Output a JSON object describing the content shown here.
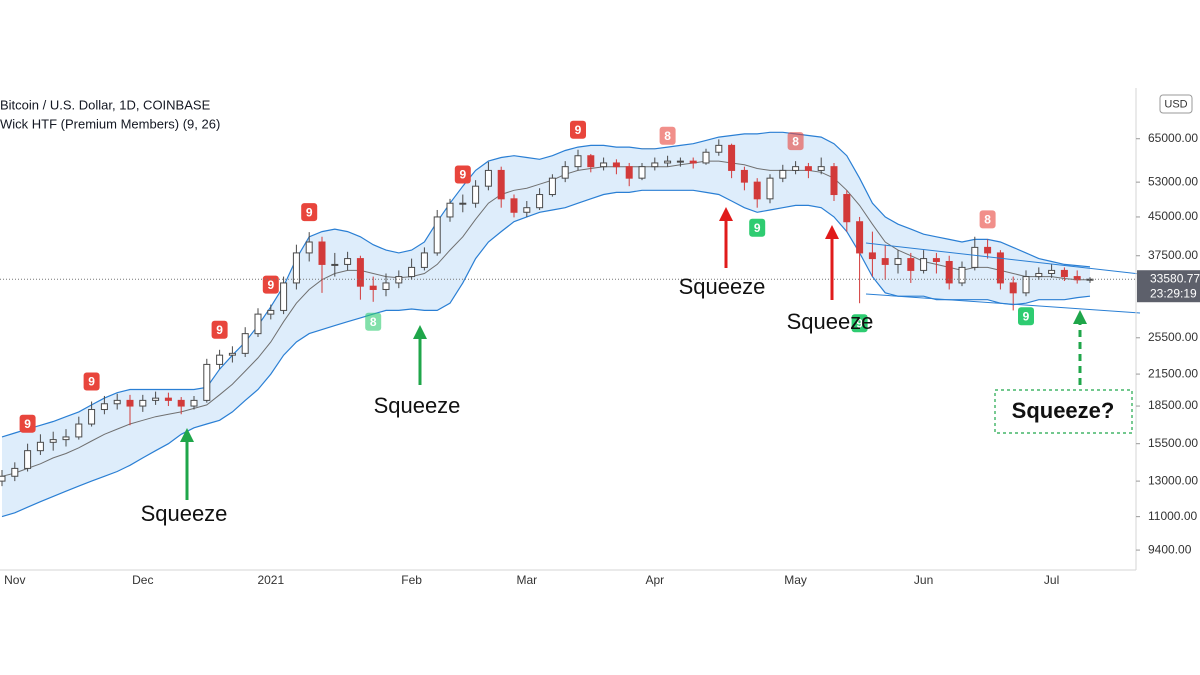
{
  "chart_data": {
    "type": "candlestick",
    "title": "Bitcoin / U.S. Dollar, 1D, COINBASE",
    "subtitle": "Wick HTF (Premium Members) (9, 26)",
    "currency": "USD",
    "countdown": "23:29:19",
    "log_scale": true,
    "up_color": "#4a4a4a",
    "down_color": "#d23a3a",
    "band_color": "#2a7fd4",
    "band_fill": "#deedfb",
    "mid_color": "#707070",
    "sell_color": "#e8453c",
    "buy_color": "#2ecc71",
    "categories": [
      null,
      "Nov",
      null,
      null,
      null,
      null,
      null,
      null,
      null,
      null,
      null,
      "Dec",
      null,
      null,
      null,
      null,
      null,
      null,
      null,
      null,
      null,
      "2021",
      null,
      null,
      null,
      null,
      null,
      null,
      null,
      null,
      null,
      null,
      "Feb",
      null,
      null,
      null,
      null,
      null,
      null,
      null,
      null,
      "Mar",
      null,
      null,
      null,
      null,
      null,
      null,
      null,
      null,
      null,
      "Apr",
      null,
      null,
      null,
      null,
      null,
      null,
      null,
      null,
      null,
      null,
      "May",
      null,
      null,
      null,
      null,
      null,
      null,
      null,
      null,
      null,
      "Jun",
      null,
      null,
      null,
      null,
      null,
      null,
      null,
      null,
      null,
      "Jul",
      null,
      null,
      null
    ],
    "open": [
      13000,
      13300,
      13800,
      15000,
      15600,
      15800,
      16000,
      17000,
      18200,
      18700,
      19000,
      18500,
      19000,
      19200,
      19000,
      18500,
      19000,
      22500,
      23500,
      23700,
      26000,
      28500,
      29000,
      33000,
      38000,
      40000,
      36000,
      36000,
      37000,
      32500,
      32000,
      33000,
      34000,
      35500,
      38000,
      45000,
      48000,
      48000,
      52000,
      56000,
      49000,
      46000,
      47000,
      50000,
      54000,
      57000,
      60000,
      57000,
      58000,
      57000,
      54000,
      57000,
      58000,
      58500,
      58500,
      58000,
      61000,
      63000,
      56000,
      53000,
      49000,
      54000,
      56000,
      57000,
      56000,
      57000,
      50000,
      44000,
      38000,
      37000,
      36000,
      37000,
      35000,
      37000,
      36500,
      33000,
      35500,
      39000,
      38000,
      33000,
      31500,
      34000,
      34500,
      35000,
      34000,
      33500
    ],
    "high": [
      13700,
      14200,
      15500,
      16200,
      16400,
      16600,
      17600,
      18900,
      19400,
      19600,
      19500,
      19500,
      19800,
      19700,
      19300,
      19400,
      23100,
      24100,
      24500,
      26800,
      29300,
      29800,
      34000,
      39500,
      41900,
      41000,
      38000,
      38200,
      37500,
      34000,
      34500,
      35000,
      37000,
      39000,
      46500,
      49000,
      50000,
      53500,
      58300,
      57000,
      50000,
      48500,
      51500,
      55000,
      58500,
      61700,
      60500,
      59500,
      59000,
      58000,
      58000,
      59500,
      60000,
      59500,
      59500,
      62000,
      64800,
      63500,
      57000,
      54000,
      55000,
      57500,
      58500,
      58000,
      59500,
      58000,
      51000,
      45000,
      42000,
      39500,
      38500,
      38000,
      38500,
      38000,
      37500,
      36500,
      41000,
      40500,
      38500,
      34000,
      35000,
      35500,
      36000,
      35500,
      35000,
      33900
    ],
    "low": [
      12700,
      13000,
      13600,
      14700,
      15000,
      15300,
      15800,
      16800,
      17800,
      18200,
      16900,
      18000,
      18600,
      18500,
      17800,
      18200,
      18800,
      22000,
      22700,
      23300,
      25600,
      27800,
      28500,
      32000,
      36500,
      31500,
      34000,
      35000,
      30500,
      30200,
      31000,
      32200,
      33500,
      35000,
      37500,
      44000,
      46000,
      47000,
      51000,
      47000,
      44900,
      45000,
      46500,
      49500,
      53000,
      56000,
      55500,
      56000,
      55000,
      52000,
      53500,
      56000,
      57000,
      57000,
      56500,
      57500,
      60000,
      54000,
      51000,
      47000,
      48000,
      53000,
      55000,
      54000,
      55000,
      48500,
      42000,
      30000,
      34000,
      33500,
      34500,
      33000,
      34500,
      34500,
      32000,
      32500,
      35000,
      37000,
      32000,
      29000,
      31000,
      33500,
      33800,
      33300,
      32900,
      33000
    ],
    "close": [
      13300,
      13800,
      15000,
      15600,
      15800,
      16000,
      17000,
      18200,
      18700,
      19000,
      18500,
      19000,
      19200,
      19000,
      18500,
      19000,
      22500,
      23500,
      23700,
      26000,
      28500,
      29000,
      33000,
      38000,
      40000,
      36000,
      36000,
      37000,
      32500,
      32000,
      33000,
      34000,
      35500,
      38000,
      45000,
      48000,
      48000,
      52000,
      56000,
      49000,
      46000,
      47000,
      50000,
      54000,
      57000,
      60000,
      57000,
      58000,
      57000,
      54000,
      57000,
      58000,
      58500,
      58500,
      58000,
      61000,
      63000,
      56000,
      53000,
      49000,
      54000,
      56000,
      57000,
      56000,
      57000,
      50000,
      44000,
      38000,
      37000,
      36000,
      37000,
      35000,
      37000,
      36500,
      33000,
      35500,
      39000,
      38000,
      33000,
      31500,
      34000,
      34500,
      35000,
      34000,
      33500,
      33580.77
    ],
    "bands": {
      "upper": [
        16000,
        16300,
        16600,
        16900,
        17200,
        17600,
        18000,
        18600,
        19200,
        19700,
        20000,
        20000,
        20000,
        20000,
        20000,
        20000,
        20200,
        22000,
        23500,
        25000,
        27000,
        29500,
        32500,
        37000,
        41000,
        42000,
        42500,
        42000,
        41000,
        39500,
        38500,
        38000,
        38500,
        40000,
        44000,
        48000,
        52000,
        56000,
        58500,
        59500,
        60000,
        59500,
        59000,
        60000,
        61500,
        62500,
        63000,
        63000,
        62500,
        62500,
        62000,
        62000,
        62500,
        63000,
        63500,
        64500,
        65500,
        66000,
        66500,
        66500,
        67000,
        67000,
        66500,
        66000,
        65500,
        63500,
        60000,
        54000,
        48000,
        45000,
        43500,
        42500,
        41500,
        41000,
        40500,
        40000,
        40500,
        40500,
        40000,
        39000,
        38000,
        37000,
        36500,
        36000,
        35800,
        35600
      ],
      "mid": [
        13300,
        13500,
        13800,
        14100,
        14500,
        14800,
        15200,
        15700,
        16200,
        16600,
        17000,
        17300,
        17600,
        17800,
        18000,
        18300,
        18600,
        19500,
        20500,
        21800,
        23200,
        25000,
        27500,
        30000,
        32000,
        33500,
        34500,
        35000,
        35000,
        34500,
        34000,
        33800,
        34000,
        34500,
        36000,
        38500,
        41000,
        44500,
        48000,
        50000,
        51000,
        51500,
        52500,
        53500,
        55000,
        56000,
        56500,
        57000,
        57000,
        57000,
        57000,
        57000,
        57000,
        57500,
        58000,
        58500,
        58500,
        58000,
        57500,
        56500,
        56000,
        56000,
        56000,
        56000,
        55500,
        54000,
        51000,
        47500,
        43500,
        40000,
        38500,
        37500,
        36500,
        36000,
        35500,
        35000,
        35500,
        35500,
        35000,
        34500,
        34000,
        34000,
        34000,
        33700,
        33500,
        33500
      ],
      "lower": [
        11000,
        11200,
        11500,
        11800,
        12100,
        12400,
        12700,
        13000,
        13300,
        13600,
        14000,
        14500,
        15000,
        15500,
        16200,
        16700,
        17000,
        17300,
        18000,
        19000,
        20000,
        21500,
        23500,
        25000,
        26000,
        26500,
        27000,
        27500,
        28000,
        28500,
        29000,
        29000,
        29200,
        29000,
        29000,
        30000,
        33000,
        37000,
        40000,
        42000,
        44000,
        45000,
        46000,
        46500,
        47000,
        48000,
        49000,
        50000,
        50500,
        50500,
        51000,
        51000,
        51000,
        51000,
        51000,
        50500,
        50000,
        48500,
        47000,
        46000,
        46500,
        47000,
        47500,
        47500,
        47000,
        45000,
        42000,
        38000,
        34000,
        31500,
        31000,
        31000,
        31000,
        30500,
        30500,
        30500,
        30500,
        30500,
        30000,
        29800,
        30000,
        30500,
        30500,
        30500,
        30800,
        31000
      ]
    },
    "sell_setup": [
      null,
      null,
      "9",
      null,
      null,
      null,
      null,
      "9",
      null,
      null,
      null,
      null,
      null,
      null,
      null,
      null,
      null,
      "9",
      null,
      null,
      null,
      "9",
      null,
      null,
      "9",
      null,
      null,
      null,
      null,
      null,
      null,
      null,
      null,
      null,
      null,
      null,
      "9",
      null,
      null,
      null,
      null,
      null,
      null,
      null,
      null,
      "9",
      null,
      null,
      null,
      null,
      null,
      null,
      "8",
      null,
      null,
      null,
      null,
      null,
      null,
      null,
      null,
      null,
      "8",
      null,
      null,
      null,
      null,
      null,
      null,
      null,
      null,
      null,
      null,
      null,
      null,
      null,
      null,
      "8",
      null,
      null,
      null,
      null,
      null,
      null,
      null,
      null
    ],
    "buy_setup": [
      null,
      null,
      null,
      null,
      null,
      null,
      null,
      null,
      null,
      null,
      null,
      null,
      null,
      null,
      null,
      null,
      null,
      null,
      null,
      null,
      null,
      null,
      null,
      null,
      null,
      null,
      null,
      null,
      null,
      "8",
      null,
      null,
      null,
      null,
      null,
      null,
      null,
      null,
      null,
      null,
      null,
      null,
      null,
      null,
      null,
      null,
      null,
      null,
      null,
      null,
      null,
      null,
      null,
      null,
      null,
      null,
      null,
      null,
      null,
      "9",
      null,
      null,
      null,
      null,
      null,
      null,
      null,
      "9",
      null,
      null,
      null,
      null,
      null,
      null,
      null,
      null,
      null,
      null,
      null,
      null,
      "9",
      null,
      null,
      null,
      null,
      null
    ],
    "annotations": [
      "Squeeze",
      "Squeeze",
      "Squeeze",
      "Squeeze",
      "Squeeze?"
    ],
    "ylim": [
      8560,
      82500
    ],
    "yticks": [
      {
        "value": 9400,
        "label": "9400.00"
      },
      {
        "value": 11000,
        "label": "11000.00"
      },
      {
        "value": 13000,
        "label": "13000.00"
      },
      {
        "value": 15500,
        "label": "15500.00"
      },
      {
        "value": 18500,
        "label": "18500.00"
      },
      {
        "value": 21500,
        "label": "21500.00"
      },
      {
        "value": 25500,
        "label": "25500.00"
      },
      {
        "value": 37500,
        "label": "37500.00"
      },
      {
        "value": 45000,
        "label": "45000.00"
      },
      {
        "value": 53000,
        "label": "53000.00"
      },
      {
        "value": 65000,
        "label": "65000.00"
      }
    ]
  }
}
